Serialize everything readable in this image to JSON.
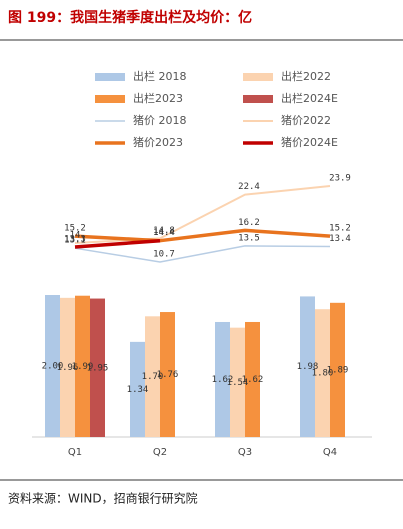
{
  "chart_data": {
    "type": "bar-line",
    "title": "图 199：我国生猪季度出栏及均价：亿",
    "source": "资料来源：WIND，招商银行研究院",
    "categories": [
      "Q1",
      "Q2",
      "Q3",
      "Q4"
    ],
    "series": [
      {
        "name": "出栏 2018",
        "kind": "bar",
        "color": "#aec8e6",
        "values": [
          2.0,
          1.34,
          1.62,
          1.98
        ],
        "value_labels": [
          "2.00",
          "1.34",
          "1.62",
          "1.98"
        ]
      },
      {
        "name": "出栏2022",
        "kind": "bar",
        "color": "#fbd3b0",
        "values": [
          1.96,
          1.7,
          1.54,
          1.8
        ],
        "value_labels": [
          "1.96",
          "1.70",
          "1.54",
          "1.80"
        ]
      },
      {
        "name": "出栏2023",
        "kind": "bar",
        "color": "#f5913e",
        "values": [
          1.99,
          1.76,
          1.62,
          1.89
        ],
        "value_labels": [
          "1.99",
          "1.76",
          "1.62",
          "1.89"
        ]
      },
      {
        "name": "出栏2024E",
        "kind": "bar",
        "color": "#c0504d",
        "values": [
          1.95,
          null,
          null,
          null
        ],
        "value_labels": [
          "1.95",
          null,
          null,
          null
        ]
      },
      {
        "name": "猪价 2018",
        "kind": "line",
        "color": "#b8cde4",
        "width": 1.5,
        "values": [
          13.1,
          10.7,
          13.5,
          13.4
        ]
      },
      {
        "name": "猪价2022",
        "kind": "line",
        "color": "#fbd3b0",
        "width": 2,
        "values": [
          14.0,
          14.8,
          22.4,
          23.9
        ]
      },
      {
        "name": "猪价2023",
        "kind": "line",
        "color": "#e8731e",
        "width": 3.5,
        "values": [
          15.2,
          14.4,
          16.2,
          15.2
        ]
      },
      {
        "name": "猪价2024E",
        "kind": "line",
        "color": "#c00000",
        "width": 3.5,
        "values": [
          13.3,
          14.4,
          null,
          null
        ]
      }
    ]
  }
}
